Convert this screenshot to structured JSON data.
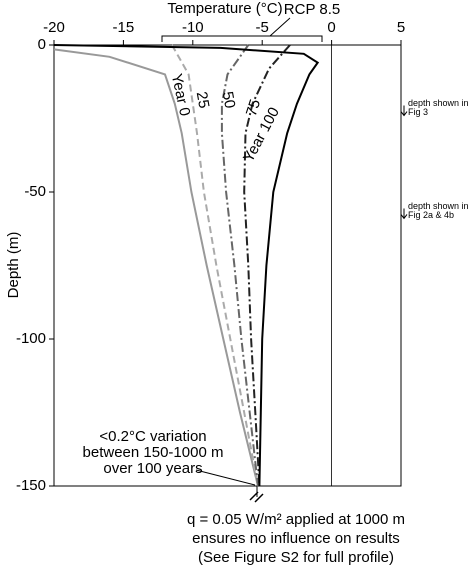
{
  "chart_data": {
    "type": "line",
    "title": "RCP 8.5",
    "x_label": "Temperature (°C)",
    "y_label": "Depth (m)",
    "xlim": [
      -20,
      5
    ],
    "xticks": [
      -20,
      -15,
      -10,
      -5,
      0,
      5
    ],
    "ylim": [
      -150,
      0
    ],
    "yticks": [
      0,
      -50,
      -100,
      -150
    ],
    "vline": 0,
    "series": [
      {
        "name": "Year 0",
        "color": "#999999",
        "dash": "none",
        "x": [
          -20,
          -16,
          -12,
          -11.3,
          -10.8,
          -10.1,
          -9,
          -7.8,
          -6.6,
          -5.3
        ],
        "values": [
          -1.5,
          -4,
          -10,
          -20,
          -30,
          -50,
          -75,
          -100,
          -125,
          -150
        ]
      },
      {
        "name": "25",
        "color": "#aaaaaa",
        "dash": "7 4",
        "x": [
          -11.5,
          -10.3,
          -10,
          -9.7,
          -9.2,
          -8.3,
          -7.3,
          -6.3,
          -5.3
        ],
        "values": [
          0,
          -10,
          -20,
          -30,
          -50,
          -75,
          -100,
          -125,
          -150
        ]
      },
      {
        "name": "50",
        "color": "#666666",
        "dash": "9 3 2 3",
        "x": [
          -6,
          -7.5,
          -7.9,
          -7.9,
          -7.6,
          -7,
          -6.5,
          -5.9,
          -5.3
        ],
        "values": [
          0,
          -10,
          -20,
          -30,
          -50,
          -75,
          -100,
          -125,
          -150
        ]
      },
      {
        "name": "75",
        "color": "#222222",
        "dash": "9 3 2 3",
        "x": [
          -3,
          -4.5,
          -5.7,
          -6.2,
          -6.3,
          -6,
          -5.8,
          -5.5,
          -5.2
        ],
        "values": [
          0,
          -8,
          -20,
          -30,
          -50,
          -75,
          -100,
          -125,
          -150
        ]
      },
      {
        "name": "Year 100",
        "color": "#000000",
        "dash": "none",
        "x": [
          -20,
          -8,
          -2,
          -1,
          -1.6,
          -2.5,
          -3.2,
          -4.2,
          -4.7,
          -5,
          -5.1,
          -5.2
        ],
        "values": [
          0,
          -1,
          -3,
          -6,
          -10,
          -20,
          -30,
          -50,
          -75,
          -100,
          -125,
          -150
        ]
      }
    ],
    "depth_markers": [
      {
        "depth": -24,
        "label": [
          "depth shown in",
          "Fig 3"
        ]
      },
      {
        "depth": -59,
        "label": [
          "depth shown in",
          "Fig 2a & 4b"
        ]
      }
    ],
    "annotations": [
      [
        "<0.2°C variation",
        "between 150-1000 m",
        "over 100 years"
      ],
      [
        "q = 0.05 W/m² applied at 1000 m",
        "ensures no influence on results",
        "(See Figure S2 for full profile)"
      ]
    ]
  }
}
